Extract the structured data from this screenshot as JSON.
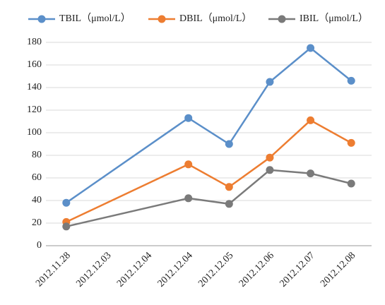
{
  "chart_data": {
    "type": "line",
    "categories": [
      "2012.11.28",
      "2012.12.03",
      "2012.12.04",
      "2012.12.04",
      "2012.12.05",
      "2012.12.06",
      "2012.12.07",
      "2012.12.08"
    ],
    "series": [
      {
        "name": "TBIL（μmol/L）",
        "color": "#5b8fc9",
        "values": [
          38,
          null,
          null,
          113,
          90,
          145,
          175,
          146
        ]
      },
      {
        "name": "DBIL（μmol/L）",
        "color": "#ed7d31",
        "values": [
          21,
          null,
          null,
          72,
          52,
          78,
          111,
          91
        ]
      },
      {
        "name": "IBIL（μmol/L）",
        "color": "#7a7a7a",
        "values": [
          17,
          null,
          null,
          42,
          37,
          67,
          64,
          55
        ]
      }
    ],
    "ylim": [
      0,
      180
    ],
    "yticks": [
      0,
      20,
      40,
      60,
      80,
      100,
      120,
      140,
      160,
      180
    ],
    "grid": true,
    "legend": "top",
    "connect_gaps": true
  }
}
